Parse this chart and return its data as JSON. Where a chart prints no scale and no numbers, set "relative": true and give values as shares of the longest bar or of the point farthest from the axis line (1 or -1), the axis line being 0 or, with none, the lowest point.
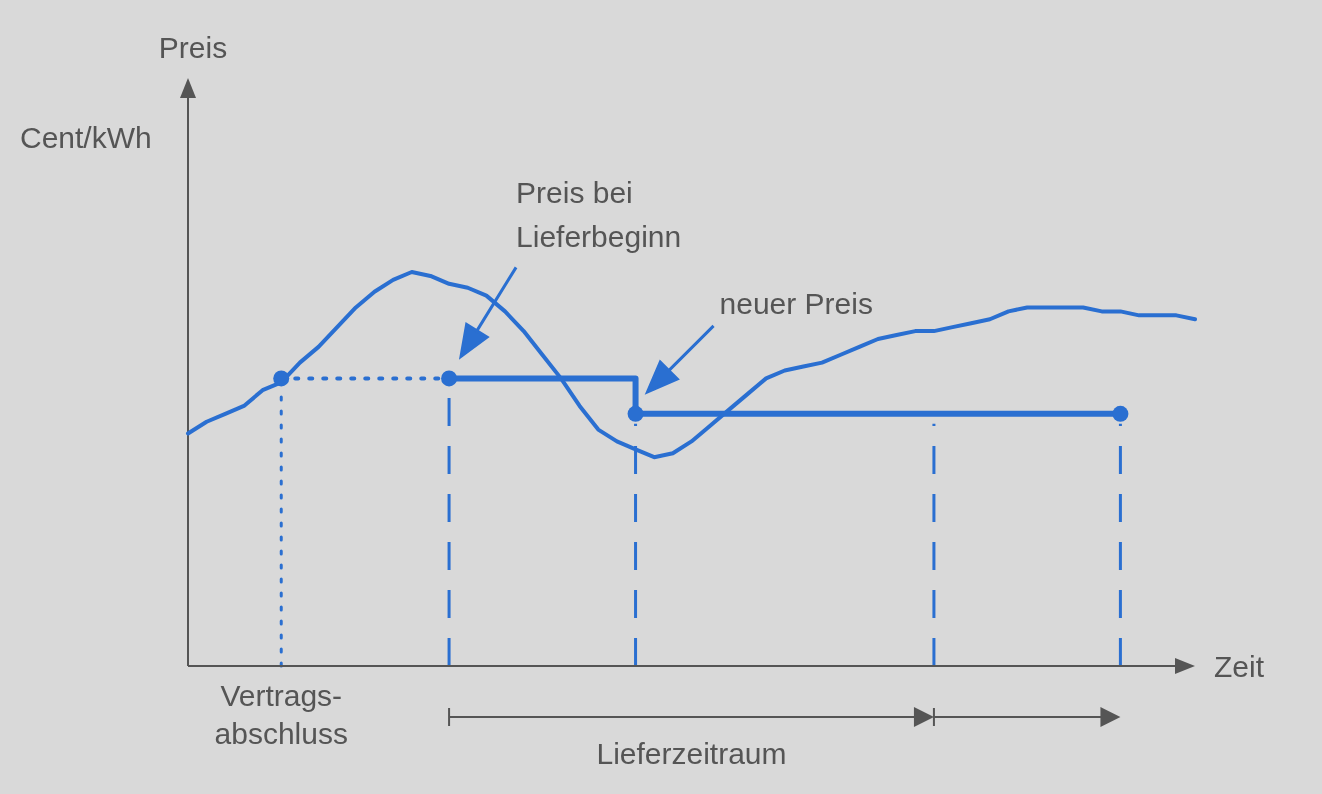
{
  "chart_data": {
    "type": "line",
    "relative": true,
    "xlabel": "Zeit",
    "categories": [
      null,
      null,
      null,
      null,
      null,
      null,
      null,
      null,
      null,
      null,
      null,
      null,
      null,
      null,
      null,
      null,
      null,
      null,
      null,
      null,
      null,
      null,
      null,
      null,
      null,
      null,
      null,
      null,
      null,
      null,
      null,
      null,
      null,
      null,
      null,
      null,
      null,
      null,
      null,
      null,
      null,
      null,
      null,
      null,
      null,
      null,
      null,
      null,
      null,
      null,
      null,
      null,
      null,
      null,
      null
    ],
    "series": [
      {
        "color": "#2a6fd1",
        "marker": "none",
        "line_style": "solid",
        "values": [
          0.59,
          0.62,
          0.64,
          0.66,
          0.7,
          0.72,
          0.77,
          0.81,
          0.86,
          0.91,
          0.95,
          0.98,
          1.0,
          0.99,
          0.97,
          0.96,
          0.94,
          0.9,
          0.85,
          0.79,
          0.73,
          0.66,
          0.6,
          0.57,
          0.55,
          0.53,
          0.54,
          0.57,
          0.61,
          0.65,
          0.69,
          0.73,
          0.75,
          0.76,
          0.77,
          0.79,
          0.81,
          0.83,
          0.84,
          0.85,
          0.85,
          0.86,
          0.87,
          0.88,
          0.9,
          0.91,
          0.91,
          0.91,
          0.91,
          0.9,
          0.9,
          0.89,
          0.89,
          0.89,
          0.88
        ]
      },
      {
        "type": "line",
        "color": "#2a6fd1",
        "marker": "circle",
        "line_style": "dotted",
        "values": [
          null,
          null,
          null,
          null,
          null,
          0.73,
          null,
          null,
          null,
          null,
          null,
          null,
          null,
          null,
          0.73,
          null,
          null,
          null,
          null,
          null,
          null,
          null,
          null,
          null,
          null,
          null,
          null,
          null,
          null,
          null,
          null,
          null,
          null,
          null,
          null,
          null,
          null,
          null,
          null,
          null,
          null,
          null,
          null,
          null,
          null,
          null,
          null,
          null,
          null,
          null,
          null,
          null,
          null,
          null,
          null
        ]
      },
      {
        "type": "step",
        "color": "#2a6fd1",
        "marker": "circle",
        "line_style": "solid",
        "values": [
          null,
          null,
          null,
          null,
          null,
          null,
          null,
          null,
          null,
          null,
          null,
          null,
          null,
          null,
          0.73,
          null,
          null,
          null,
          null,
          null,
          null,
          null,
          null,
          null,
          0.64,
          null,
          null,
          null,
          null,
          null,
          null,
          null,
          null,
          null,
          null,
          null,
          null,
          null,
          null,
          null,
          0.64,
          null,
          null,
          null,
          null,
          null,
          null,
          null,
          null,
          null,
          0.64,
          null,
          null,
          null,
          null
        ]
      }
    ],
    "annotations": [
      "Preis",
      "Cent/kWh",
      "Vertrags-abschluss",
      "Preis bei Lieferbeginn",
      "neuer Preis",
      "Lieferzeitraum"
    ]
  }
}
